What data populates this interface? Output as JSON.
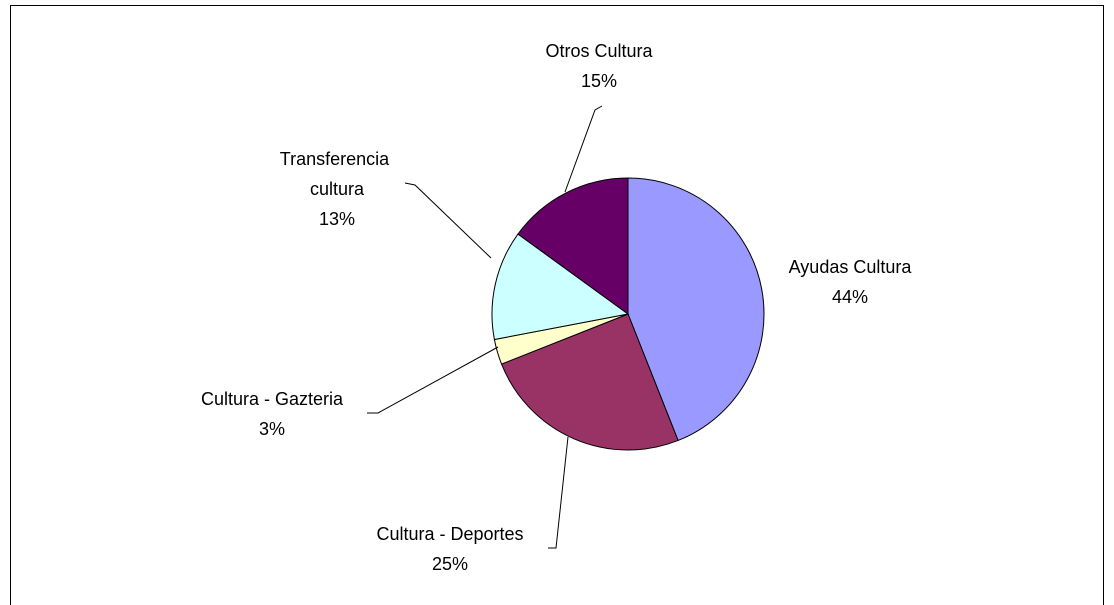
{
  "chart_data": {
    "type": "pie",
    "categories": [
      "Ayudas Cultura",
      "Cultura - Deportes",
      "Cultura - Gazteria",
      "Transferencia cultura",
      "Otros Cultura"
    ],
    "values": [
      44,
      25,
      3,
      13,
      15
    ],
    "value_labels": [
      "44%",
      "25%",
      "3%",
      "13%",
      "15%"
    ],
    "colors": [
      "#9999ff",
      "#993366",
      "#ffffcc",
      "#ccffff",
      "#660066"
    ]
  }
}
